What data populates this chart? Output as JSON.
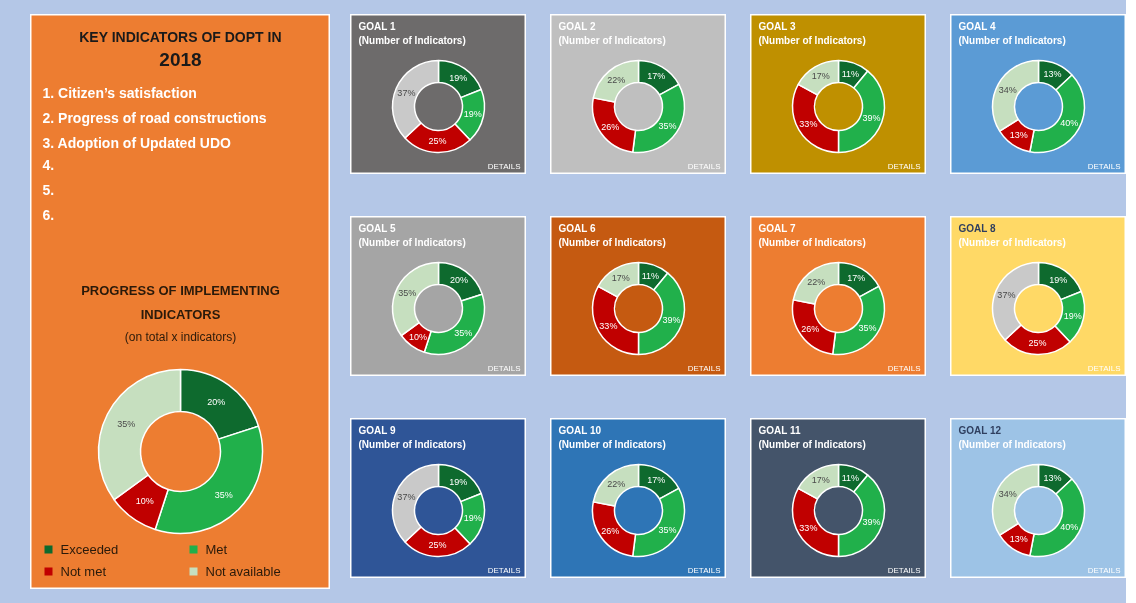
{
  "chart_data": [
    {
      "type": "other",
      "title": "KEY INDICATORS OF DOPT IN 2018",
      "annotations": [
        "1. Citizen’s satisfaction",
        "2. Progress of road constructions",
        "3. Adoption of Updated UDO",
        "4.",
        "5.",
        "6."
      ]
    },
    {
      "type": "donut",
      "title": "PROGRESS OF IMPLEMENTING INDICATORS",
      "subtitle": "(on total x indicators)",
      "categories": [
        "Exceeded",
        "Met",
        "Not met",
        "Not available"
      ],
      "values": [
        20,
        35,
        10,
        35
      ],
      "value_labels": [
        "20%",
        "35%",
        "10%",
        "35%"
      ],
      "colors": [
        "#0e6a2e",
        "#21b04b",
        "#c00000",
        "#c6dfbf"
      ],
      "legend": "bottom"
    },
    {
      "type": "donut",
      "title": "GOAL 1",
      "subtitle": "(Number of Indicators)",
      "annotations": [
        "DETAILS"
      ],
      "categories": [
        null,
        null,
        null,
        null
      ],
      "values": [
        19,
        19,
        25,
        37
      ],
      "value_labels": [
        "19%",
        "19%",
        "25%",
        "37%"
      ],
      "colors": [
        "#0e6a2e",
        "#21b04b",
        "#c00000",
        "#c9c9c9"
      ]
    },
    {
      "type": "donut",
      "title": "GOAL 2",
      "subtitle": "(Number of Indicators)",
      "annotations": [
        "DETAILS"
      ],
      "categories": [
        null,
        null,
        null,
        null
      ],
      "values": [
        17,
        35,
        26,
        22
      ],
      "value_labels": [
        "17%",
        "35%",
        "26%",
        "22%"
      ],
      "colors": [
        "#0e6a2e",
        "#21b04b",
        "#c00000",
        "#c6dfbf"
      ]
    },
    {
      "type": "donut",
      "title": "GOAL 3",
      "subtitle": "(Number of Indicators)",
      "annotations": [
        "DETAILS"
      ],
      "categories": [
        null,
        null,
        null,
        null
      ],
      "values": [
        11,
        39,
        33,
        17
      ],
      "value_labels": [
        "11%",
        "39%",
        "33%",
        "17%"
      ],
      "colors": [
        "#0e6a2e",
        "#21b04b",
        "#c00000",
        "#c6dfbf"
      ]
    },
    {
      "type": "donut",
      "title": "GOAL 4",
      "subtitle": "(Number of Indicators)",
      "annotations": [
        "DETAILS"
      ],
      "categories": [
        null,
        null,
        null,
        null
      ],
      "values": [
        13,
        40,
        13,
        34
      ],
      "value_labels": [
        "13%",
        "40%",
        "13%",
        "34%"
      ],
      "colors": [
        "#0e6a2e",
        "#21b04b",
        "#c00000",
        "#c6dfbf"
      ]
    },
    {
      "type": "donut",
      "title": "GOAL 5",
      "subtitle": "(Number of Indicators)",
      "annotations": [
        "DETAILS"
      ],
      "categories": [
        null,
        null,
        null,
        null
      ],
      "values": [
        20,
        35,
        10,
        35
      ],
      "value_labels": [
        "20%",
        "35%",
        "10%",
        "35%"
      ],
      "colors": [
        "#0e6a2e",
        "#21b04b",
        "#c00000",
        "#c6dfbf"
      ]
    },
    {
      "type": "donut",
      "title": "GOAL 6",
      "subtitle": "(Number of Indicators)",
      "annotations": [
        "DETAILS"
      ],
      "categories": [
        null,
        null,
        null,
        null
      ],
      "values": [
        11,
        39,
        33,
        17
      ],
      "value_labels": [
        "11%",
        "39%",
        "33%",
        "17%"
      ],
      "colors": [
        "#0e6a2e",
        "#21b04b",
        "#c00000",
        "#c6dfbf"
      ]
    },
    {
      "type": "donut",
      "title": "GOAL 7",
      "subtitle": "(Number of Indicators)",
      "annotations": [
        "DETAILS"
      ],
      "categories": [
        null,
        null,
        null,
        null
      ],
      "values": [
        17,
        35,
        26,
        22
      ],
      "value_labels": [
        "17%",
        "35%",
        "26%",
        "22%"
      ],
      "colors": [
        "#0e6a2e",
        "#21b04b",
        "#c00000",
        "#c6dfbf"
      ]
    },
    {
      "type": "donut",
      "title": "GOAL 8",
      "subtitle": "(Number of Indicators)",
      "annotations": [
        "DETAILS"
      ],
      "categories": [
        null,
        null,
        null,
        null
      ],
      "values": [
        19,
        19,
        25,
        37
      ],
      "value_labels": [
        "19%",
        "19%",
        "25%",
        "37%"
      ],
      "colors": [
        "#0e6a2e",
        "#21b04b",
        "#c00000",
        "#c9c9c9"
      ]
    },
    {
      "type": "donut",
      "title": "GOAL 9",
      "subtitle": "(Number of Indicators)",
      "annotations": [
        "DETAILS"
      ],
      "categories": [
        null,
        null,
        null,
        null
      ],
      "values": [
        19,
        19,
        25,
        37
      ],
      "value_labels": [
        "19%",
        "19%",
        "25%",
        "37%"
      ],
      "colors": [
        "#0e6a2e",
        "#21b04b",
        "#c00000",
        "#c9c9c9"
      ]
    },
    {
      "type": "donut",
      "title": "GOAL 10",
      "subtitle": "(Number of Indicators)",
      "annotations": [
        "DETAILS"
      ],
      "categories": [
        null,
        null,
        null,
        null
      ],
      "values": [
        17,
        35,
        26,
        22
      ],
      "value_labels": [
        "17%",
        "35%",
        "26%",
        "22%"
      ],
      "colors": [
        "#0e6a2e",
        "#21b04b",
        "#c00000",
        "#c6dfbf"
      ]
    },
    {
      "type": "donut",
      "title": "GOAL 11",
      "subtitle": "(Number of Indicators)",
      "annotations": [
        "DETAILS"
      ],
      "categories": [
        null,
        null,
        null,
        null
      ],
      "values": [
        11,
        39,
        33,
        17
      ],
      "value_labels": [
        "11%",
        "39%",
        "33%",
        "17%"
      ],
      "colors": [
        "#0e6a2e",
        "#21b04b",
        "#c00000",
        "#c6dfbf"
      ]
    },
    {
      "type": "donut",
      "title": "GOAL 12",
      "subtitle": "(Number of Indicators)",
      "annotations": [
        "DETAILS"
      ],
      "categories": [
        null,
        null,
        null,
        null
      ],
      "values": [
        13,
        40,
        13,
        34
      ],
      "value_labels": [
        "13%",
        "40%",
        "13%",
        "34%"
      ],
      "colors": [
        "#0e6a2e",
        "#21b04b",
        "#c00000",
        "#c6dfbf"
      ]
    }
  ]
}
